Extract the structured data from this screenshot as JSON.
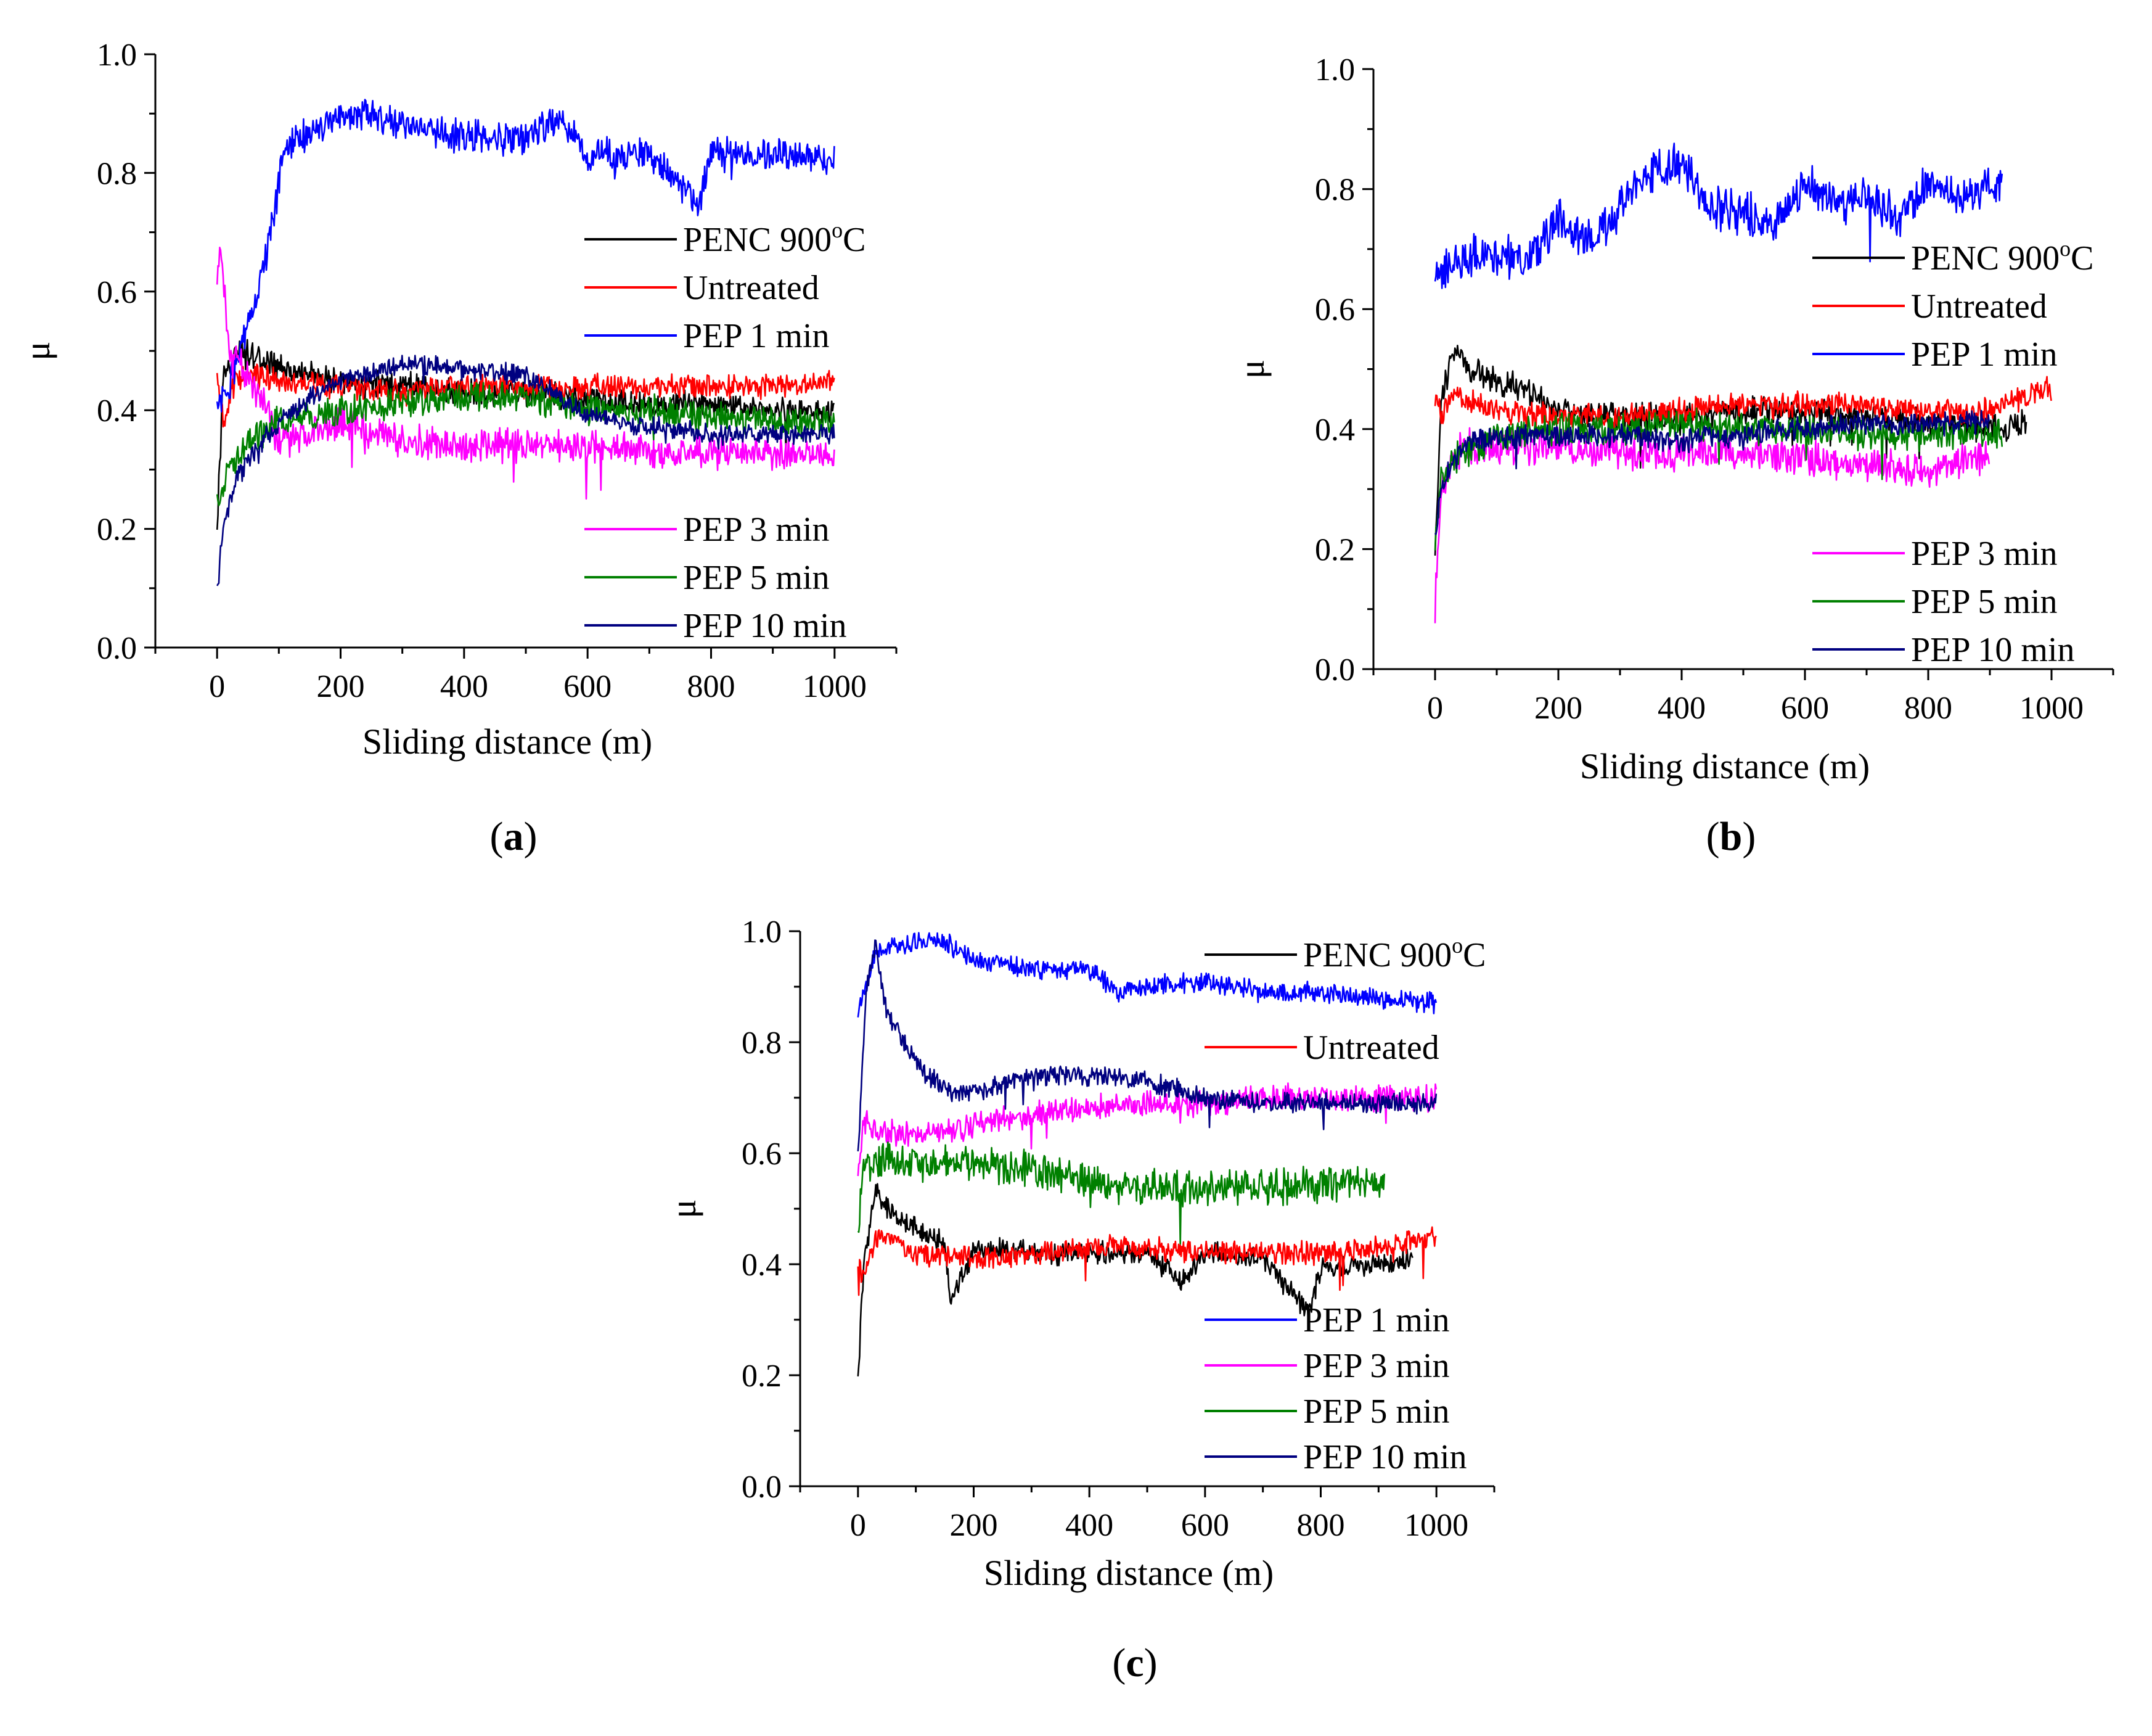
{
  "figure": {
    "description_labels": [
      "(a)",
      "(b)",
      "(c)"
    ]
  },
  "series_colors": {
    "PENC 900oC": "#000000",
    "Untreated": "#ff0000",
    "PEP 1 min": "#0000ff",
    "PEP 3 min": "#ff00ff",
    "PEP 5 min": "#008000",
    "PEP 10 min": "#000080"
  },
  "chart_data": [
    {
      "id": "a",
      "panel_label": {
        "open": "(",
        "letter": "a",
        "close": ")"
      },
      "type": "line",
      "xlabel": "Sliding distance (m)",
      "ylabel": "μ",
      "xlim": [
        -100,
        1100
      ],
      "ylim": [
        0,
        1.0
      ],
      "xticks": [
        0,
        200,
        400,
        600,
        800,
        1000
      ],
      "yticks": [
        0.0,
        0.2,
        0.4,
        0.6,
        0.8,
        1.0
      ],
      "xtick_labels": [
        "0",
        "200",
        "400",
        "600",
        "800",
        "1000"
      ],
      "ytick_labels": [
        "0.0",
        "0.2",
        "0.4",
        "0.6",
        "0.8",
        "1.0"
      ],
      "legend": [
        {
          "name": "PENC 900",
          "sup": "o",
          "tail": "C",
          "color": "#000000"
        },
        {
          "name": "Untreated",
          "color": "#ff0000"
        },
        {
          "name": "PEP 1 min",
          "color": "#0000ff"
        },
        {
          "name": "PEP 3 min",
          "color": "#ff00ff"
        },
        {
          "name": "PEP 5 min",
          "color": "#008000"
        },
        {
          "name": "PEP 10 min",
          "color": "#000080"
        }
      ],
      "series": [
        {
          "name": "PENC 900oC",
          "color": "#000000",
          "noise": 0.018,
          "x": [
            0,
            10,
            30,
            60,
            100,
            150,
            200,
            300,
            400,
            500,
            600,
            700,
            800,
            900,
            1000
          ],
          "y": [
            0.2,
            0.45,
            0.5,
            0.49,
            0.47,
            0.46,
            0.45,
            0.44,
            0.43,
            0.43,
            0.42,
            0.41,
            0.41,
            0.4,
            0.4
          ]
        },
        {
          "name": "Untreated",
          "color": "#ff0000",
          "noise": 0.016,
          "x": [
            0,
            10,
            30,
            60,
            100,
            200,
            300,
            400,
            500,
            600,
            700,
            800,
            900,
            1000
          ],
          "y": [
            0.45,
            0.38,
            0.45,
            0.46,
            0.45,
            0.44,
            0.43,
            0.44,
            0.44,
            0.44,
            0.44,
            0.44,
            0.44,
            0.45
          ]
        },
        {
          "name": "PEP 1 min",
          "color": "#0000ff",
          "noise": 0.022,
          "x": [
            0,
            20,
            50,
            80,
            110,
            150,
            200,
            250,
            300,
            400,
            500,
            550,
            600,
            700,
            780,
            800,
            900,
            1000
          ],
          "y": [
            0.4,
            0.44,
            0.55,
            0.66,
            0.84,
            0.87,
            0.9,
            0.9,
            0.88,
            0.86,
            0.86,
            0.89,
            0.83,
            0.83,
            0.75,
            0.83,
            0.83,
            0.82
          ]
        },
        {
          "name": "PEP 3 min",
          "color": "#ff00ff",
          "noise": 0.022,
          "x": [
            0,
            5,
            20,
            50,
            80,
            100,
            150,
            200,
            300,
            400,
            500,
            600,
            700,
            800,
            900,
            1000
          ],
          "y": [
            0.6,
            0.69,
            0.5,
            0.46,
            0.4,
            0.34,
            0.36,
            0.38,
            0.35,
            0.34,
            0.34,
            0.34,
            0.33,
            0.33,
            0.33,
            0.32
          ]
        },
        {
          "name": "PEP 5 min",
          "color": "#008000",
          "noise": 0.02,
          "x": [
            0,
            20,
            50,
            100,
            200,
            300,
            400,
            500,
            600,
            700,
            800,
            900,
            1000
          ],
          "y": [
            0.25,
            0.3,
            0.35,
            0.38,
            0.4,
            0.41,
            0.42,
            0.42,
            0.4,
            0.4,
            0.39,
            0.38,
            0.38
          ]
        },
        {
          "name": "PEP 10 min",
          "color": "#000080",
          "noise": 0.014,
          "x": [
            0,
            10,
            30,
            60,
            100,
            150,
            200,
            300,
            400,
            500,
            600,
            700,
            800,
            900,
            1000
          ],
          "y": [
            0.1,
            0.2,
            0.28,
            0.33,
            0.38,
            0.42,
            0.45,
            0.48,
            0.47,
            0.46,
            0.39,
            0.37,
            0.36,
            0.36,
            0.36
          ]
        }
      ]
    },
    {
      "id": "b",
      "panel_label": {
        "open": "(",
        "letter": "b",
        "close": ")"
      },
      "type": "line",
      "xlabel": "Sliding distance (m)",
      "ylabel": "μ",
      "xlim": [
        -100,
        1100
      ],
      "ylim": [
        0,
        1.0
      ],
      "xticks": [
        0,
        200,
        400,
        600,
        800,
        1000
      ],
      "yticks": [
        0.0,
        0.2,
        0.4,
        0.6,
        0.8,
        1.0
      ],
      "xtick_labels": [
        "0",
        "200",
        "400",
        "600",
        "800",
        "1000"
      ],
      "ytick_labels": [
        "0.0",
        "0.2",
        "0.4",
        "0.6",
        "0.8",
        "1.0"
      ],
      "legend": [
        {
          "name": "PENC 900",
          "sup": "o",
          "tail": "C",
          "color": "#000000"
        },
        {
          "name": "Untreated",
          "color": "#ff0000"
        },
        {
          "name": "PEP 1 min",
          "color": "#0000ff"
        },
        {
          "name": "PEP 3 min",
          "color": "#ff00ff"
        },
        {
          "name": "PEP 5 min",
          "color": "#008000"
        },
        {
          "name": "PEP 10 min",
          "color": "#000080"
        }
      ],
      "series": [
        {
          "name": "PENC 900oC",
          "color": "#000000",
          "noise": 0.018,
          "x": [
            0,
            10,
            30,
            60,
            100,
            140,
            200,
            300,
            400,
            500,
            600,
            700,
            800,
            900,
            960
          ],
          "y": [
            0.2,
            0.45,
            0.53,
            0.5,
            0.48,
            0.47,
            0.43,
            0.42,
            0.42,
            0.43,
            0.43,
            0.42,
            0.41,
            0.4,
            0.41
          ]
        },
        {
          "name": "Untreated",
          "color": "#ff0000",
          "noise": 0.016,
          "x": [
            0,
            10,
            30,
            60,
            100,
            200,
            300,
            400,
            500,
            600,
            700,
            800,
            900,
            1000
          ],
          "y": [
            0.45,
            0.42,
            0.46,
            0.45,
            0.43,
            0.42,
            0.42,
            0.43,
            0.44,
            0.44,
            0.44,
            0.43,
            0.43,
            0.47
          ]
        },
        {
          "name": "PEP 1 min",
          "color": "#0000ff",
          "noise": 0.028,
          "x": [
            0,
            10,
            50,
            100,
            150,
            200,
            250,
            300,
            350,
            400,
            450,
            500,
            550,
            600,
            650,
            700,
            750,
            800,
            850,
            920
          ],
          "y": [
            0.67,
            0.66,
            0.69,
            0.69,
            0.68,
            0.75,
            0.71,
            0.77,
            0.83,
            0.84,
            0.77,
            0.76,
            0.74,
            0.81,
            0.77,
            0.79,
            0.75,
            0.81,
            0.78,
            0.81
          ]
        },
        {
          "name": "PEP 3 min",
          "color": "#ff00ff",
          "noise": 0.024,
          "x": [
            0,
            10,
            30,
            60,
            100,
            200,
            300,
            400,
            500,
            600,
            700,
            800,
            900
          ],
          "y": [
            0.1,
            0.3,
            0.36,
            0.37,
            0.37,
            0.37,
            0.36,
            0.36,
            0.36,
            0.35,
            0.34,
            0.33,
            0.35
          ]
        },
        {
          "name": "PEP 5 min",
          "color": "#008000",
          "noise": 0.02,
          "x": [
            0,
            10,
            30,
            60,
            100,
            200,
            300,
            400,
            500,
            600,
            700,
            800,
            920
          ],
          "y": [
            0.22,
            0.32,
            0.35,
            0.37,
            0.39,
            0.4,
            0.4,
            0.41,
            0.4,
            0.4,
            0.39,
            0.39,
            0.39
          ]
        },
        {
          "name": "PEP 10 min",
          "color": "#000080",
          "noise": 0.015,
          "x": [
            0,
            10,
            30,
            60,
            100,
            200,
            300,
            400,
            500,
            600,
            700,
            800,
            900
          ],
          "y": [
            0.23,
            0.3,
            0.35,
            0.38,
            0.39,
            0.39,
            0.39,
            0.38,
            0.39,
            0.4,
            0.41,
            0.41,
            0.41
          ]
        }
      ]
    },
    {
      "id": "c",
      "panel_label": {
        "open": "(",
        "letter": "c",
        "close": ")"
      },
      "type": "line",
      "xlabel": "Sliding distance (m)",
      "ylabel": "μ",
      "xlim": [
        -100,
        1100
      ],
      "ylim": [
        0,
        1.0
      ],
      "xticks": [
        0,
        200,
        400,
        600,
        800,
        1000
      ],
      "yticks": [
        0.0,
        0.2,
        0.4,
        0.6,
        0.8,
        1.0
      ],
      "xtick_labels": [
        "0",
        "200",
        "400",
        "600",
        "800",
        "1000"
      ],
      "ytick_labels": [
        "0.0",
        "0.2",
        "0.4",
        "0.6",
        "0.8",
        "1.0"
      ],
      "legend": [
        {
          "name": "PENC 900",
          "sup": "o",
          "tail": "C",
          "color": "#000000"
        },
        {
          "name": "Untreated",
          "color": "#ff0000"
        },
        {
          "name": "PEP 1 min",
          "color": "#0000ff"
        },
        {
          "name": "PEP 3 min",
          "color": "#ff00ff"
        },
        {
          "name": "PEP 5 min",
          "color": "#008000"
        },
        {
          "name": "PEP 10 min",
          "color": "#000080"
        }
      ],
      "series": [
        {
          "name": "PENC 900oC",
          "color": "#000000",
          "noise": 0.016,
          "x": [
            0,
            10,
            30,
            60,
            100,
            150,
            160,
            200,
            300,
            400,
            500,
            560,
            600,
            700,
            780,
            800,
            900,
            960
          ],
          "y": [
            0.2,
            0.4,
            0.53,
            0.49,
            0.46,
            0.44,
            0.33,
            0.43,
            0.42,
            0.42,
            0.42,
            0.37,
            0.42,
            0.41,
            0.31,
            0.39,
            0.4,
            0.41
          ]
        },
        {
          "name": "Untreated",
          "color": "#ff0000",
          "noise": 0.016,
          "x": [
            0,
            10,
            30,
            60,
            100,
            200,
            300,
            400,
            500,
            600,
            700,
            800,
            900,
            1000
          ],
          "y": [
            0.4,
            0.38,
            0.44,
            0.44,
            0.42,
            0.41,
            0.42,
            0.43,
            0.43,
            0.42,
            0.42,
            0.42,
            0.43,
            0.45
          ]
        },
        {
          "name": "PEP 1 min",
          "color": "#0000ff",
          "noise": 0.014,
          "x": [
            0,
            30,
            60,
            100,
            150,
            200,
            300,
            400,
            450,
            500,
            600,
            700,
            800,
            900,
            1000
          ],
          "y": [
            0.85,
            0.96,
            0.97,
            0.98,
            0.98,
            0.95,
            0.93,
            0.93,
            0.89,
            0.9,
            0.91,
            0.89,
            0.89,
            0.88,
            0.87
          ]
        },
        {
          "name": "PEP 3 min",
          "color": "#ff00ff",
          "noise": 0.018,
          "x": [
            0,
            10,
            30,
            100,
            200,
            300,
            400,
            500,
            600,
            700,
            800,
            900,
            1000
          ],
          "y": [
            0.55,
            0.66,
            0.64,
            0.63,
            0.65,
            0.67,
            0.68,
            0.69,
            0.69,
            0.7,
            0.7,
            0.7,
            0.7
          ]
        },
        {
          "name": "PEP 5 min",
          "color": "#008000",
          "noise": 0.026,
          "x": [
            0,
            10,
            30,
            60,
            100,
            200,
            300,
            400,
            500,
            600,
            700,
            800,
            910
          ],
          "y": [
            0.45,
            0.57,
            0.58,
            0.59,
            0.58,
            0.58,
            0.57,
            0.55,
            0.54,
            0.54,
            0.54,
            0.54,
            0.55
          ]
        },
        {
          "name": "PEP 10 min",
          "color": "#000080",
          "noise": 0.014,
          "x": [
            0,
            15,
            30,
            50,
            80,
            120,
            160,
            200,
            300,
            400,
            500,
            600,
            700,
            800,
            900,
            1000
          ],
          "y": [
            0.6,
            0.9,
            0.97,
            0.85,
            0.8,
            0.74,
            0.71,
            0.71,
            0.74,
            0.74,
            0.73,
            0.7,
            0.69,
            0.69,
            0.69,
            0.69
          ]
        }
      ]
    }
  ]
}
